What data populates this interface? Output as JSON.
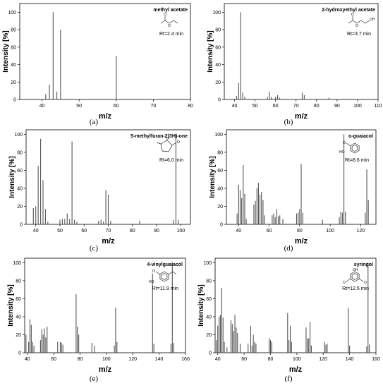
{
  "chart_data": [
    {
      "type": "bar",
      "panel": "(a)",
      "title": "methyl acetate",
      "annotation": "Rt=2.4 min",
      "xlabel": "m/z",
      "ylabel": "Intensity [%]",
      "xlim": [
        34,
        80
      ],
      "ylim": [
        0,
        110
      ],
      "xticks": [
        "40",
        "50",
        "60",
        "70",
        "80"
      ],
      "yticks": [
        "0",
        "20",
        "40",
        "60",
        "80",
        "100"
      ],
      "x": [
        41,
        42,
        43,
        44,
        45,
        60
      ],
      "values": [
        6,
        17,
        100,
        9,
        80,
        50
      ]
    },
    {
      "type": "bar",
      "panel": "(b)",
      "title": "2-hydroxyethyl acetate",
      "annotation": "Rt=3.7 min",
      "xlabel": "m/z",
      "ylabel": "Intensity [%]",
      "xlim": [
        35,
        110
      ],
      "ylim": [
        0,
        110
      ],
      "xticks": [
        "40",
        "50",
        "60",
        "70",
        "80",
        "90",
        "100",
        "110"
      ],
      "yticks": [
        "0",
        "20",
        "40",
        "60",
        "80",
        "100"
      ],
      "x": [
        41,
        42,
        43,
        44,
        45,
        56,
        57,
        58,
        60,
        61,
        62,
        73,
        74,
        86
      ],
      "values": [
        4,
        19,
        100,
        8,
        3,
        3,
        9,
        3,
        3,
        5,
        2,
        8,
        5,
        2
      ]
    },
    {
      "type": "bar",
      "panel": "(c)",
      "title": "5-methylfuran-2(3H)-one",
      "annotation": "Rt=6.0 min",
      "xlabel": "m/z",
      "ylabel": "Intensity [%]",
      "xlim": [
        36,
        104
      ],
      "ylim": [
        0,
        105
      ],
      "xticks": [
        "40",
        "50",
        "60",
        "70",
        "80",
        "90",
        "100"
      ],
      "yticks": [
        "0",
        "20",
        "40",
        "60",
        "80",
        "100"
      ],
      "x": [
        39,
        40,
        41,
        42,
        43,
        44,
        45,
        50,
        51,
        52,
        53,
        54,
        55,
        56,
        57,
        66,
        67,
        68,
        69,
        70,
        71,
        83,
        97,
        98,
        99
      ],
      "values": [
        18,
        20,
        65,
        95,
        49,
        17,
        3,
        5,
        6,
        6,
        12,
        6,
        92,
        5,
        3,
        4,
        5,
        3,
        38,
        33,
        4,
        4,
        5,
        100,
        5
      ]
    },
    {
      "type": "bar",
      "panel": "(d)",
      "title": "o-guaiacol",
      "annotation": "Rt=8.6 min",
      "xlabel": "m/z",
      "ylabel": "Intensity [%]",
      "xlim": [
        32,
        130
      ],
      "ylim": [
        0,
        105
      ],
      "xticks": [
        "40",
        "60",
        "80",
        "100",
        "120"
      ],
      "yticks": [
        "0",
        "20",
        "40",
        "60",
        "80",
        "100"
      ],
      "x": [
        39,
        40,
        41,
        42,
        43,
        44,
        45,
        50,
        51,
        52,
        53,
        54,
        55,
        56,
        57,
        62,
        63,
        64,
        65,
        66,
        67,
        69,
        78,
        79,
        80,
        81,
        82,
        95,
        106,
        107,
        108,
        109,
        110,
        123,
        124,
        125
      ],
      "values": [
        12,
        44,
        38,
        29,
        66,
        34,
        6,
        22,
        26,
        40,
        46,
        33,
        36,
        27,
        10,
        10,
        12,
        8,
        17,
        9,
        10,
        6,
        12,
        13,
        17,
        67,
        13,
        5,
        8,
        14,
        13,
        100,
        14,
        13,
        61,
        27
      ]
    },
    {
      "type": "bar",
      "panel": "(e)",
      "title": "4-vinylguaiacol",
      "annotation": "Rt=11.9 min",
      "xlabel": "m/z",
      "ylabel": "Intensity [%]",
      "xlim": [
        38,
        160
      ],
      "ylim": [
        0,
        105
      ],
      "xticks": [
        "40",
        "60",
        "80",
        "100",
        "120",
        "140",
        "160"
      ],
      "yticks": [
        "0",
        "20",
        "40",
        "60",
        "80",
        "100"
      ],
      "x": [
        39,
        41,
        42,
        43,
        44,
        45,
        50,
        51,
        52,
        53,
        54,
        55,
        63,
        65,
        66,
        67,
        77,
        78,
        79,
        89,
        91,
        106,
        107,
        108,
        135,
        136,
        149,
        150,
        151
      ],
      "values": [
        20,
        12,
        37,
        31,
        12,
        8,
        14,
        26,
        20,
        27,
        17,
        29,
        12,
        12,
        11,
        9,
        65,
        29,
        20,
        11,
        8,
        8,
        50,
        12,
        88,
        10,
        10,
        100,
        11
      ]
    },
    {
      "type": "bar",
      "panel": "(f)",
      "title": "syringol",
      "annotation": "Rt=12.5 min",
      "xlabel": "m/z",
      "ylabel": "Intensity [%]",
      "xlim": [
        38,
        160
      ],
      "ylim": [
        0,
        105
      ],
      "xticks": [
        "40",
        "60",
        "80",
        "100",
        "120",
        "140",
        "160"
      ],
      "yticks": [
        "0",
        "20",
        "40",
        "60",
        "80",
        "100"
      ],
      "x": [
        39,
        40,
        41,
        42,
        43,
        44,
        45,
        47,
        50,
        51,
        52,
        53,
        54,
        55,
        57,
        63,
        65,
        66,
        67,
        68,
        69,
        79,
        80,
        81,
        93,
        94,
        95,
        96,
        107,
        108,
        109,
        110,
        111,
        121,
        122,
        123,
        139,
        140,
        153,
        154,
        155
      ],
      "values": [
        14,
        30,
        40,
        42,
        72,
        39,
        12,
        6,
        36,
        32,
        24,
        42,
        28,
        22,
        10,
        10,
        30,
        8,
        20,
        12,
        10,
        16,
        14,
        12,
        44,
        14,
        30,
        12,
        28,
        16,
        16,
        34,
        8,
        12,
        9,
        10,
        50,
        8,
        7,
        100,
        9
      ]
    }
  ]
}
